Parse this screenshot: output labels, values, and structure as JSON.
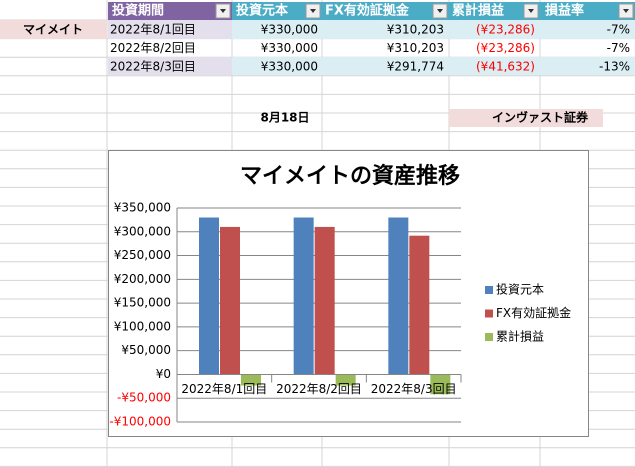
{
  "table": {
    "header": [
      "投資期間",
      "投資元本",
      "FX有効証拠金",
      "累計損益",
      "損益率"
    ],
    "rows": [
      [
        "2022年8/1回目",
        "¥330,000",
        "¥310,203",
        "(¥23,286)",
        "-7%"
      ],
      [
        "2022年8/2回目",
        "¥330,000",
        "¥310,203",
        "(¥23,286)",
        "-7%"
      ],
      [
        "2022年8/3回目",
        "¥330,000",
        "¥291,774",
        "(¥41,632)",
        "-13%"
      ]
    ]
  },
  "row_label": "マイメイト",
  "date_label": "8月18日",
  "company_label": "インヴァスト証券",
  "chart_data": {
    "type": "bar",
    "title": "マイメイトの資産推移",
    "categories": [
      "2022年8/1回目",
      "2022年8/2回目",
      "2022年8/3回目"
    ],
    "series": [
      {
        "name": "投資元本",
        "color": "#4f81bd",
        "values": [
          330000,
          330000,
          330000
        ]
      },
      {
        "name": "FX有効証拠金",
        "color": "#c0504d",
        "values": [
          310203,
          310203,
          291774
        ]
      },
      {
        "name": "累計損益",
        "color": "#9bbb59",
        "values": [
          -23286,
          -23286,
          -41632
        ]
      }
    ],
    "ylim": [
      -100000,
      350000
    ],
    "yticks": [
      {
        "value": -100000,
        "label": "-¥100,000"
      },
      {
        "value": -50000,
        "label": "-¥50,000"
      },
      {
        "value": 0,
        "label": "¥0"
      },
      {
        "value": 50000,
        "label": "¥50,000"
      },
      {
        "value": 100000,
        "label": "¥100,000"
      },
      {
        "value": 150000,
        "label": "¥150,000"
      },
      {
        "value": 200000,
        "label": "¥200,000"
      },
      {
        "value": 250000,
        "label": "¥250,000"
      },
      {
        "value": 300000,
        "label": "¥300,000"
      },
      {
        "value": 350000,
        "label": "¥350,000"
      }
    ],
    "grid": true,
    "legend": "right"
  }
}
